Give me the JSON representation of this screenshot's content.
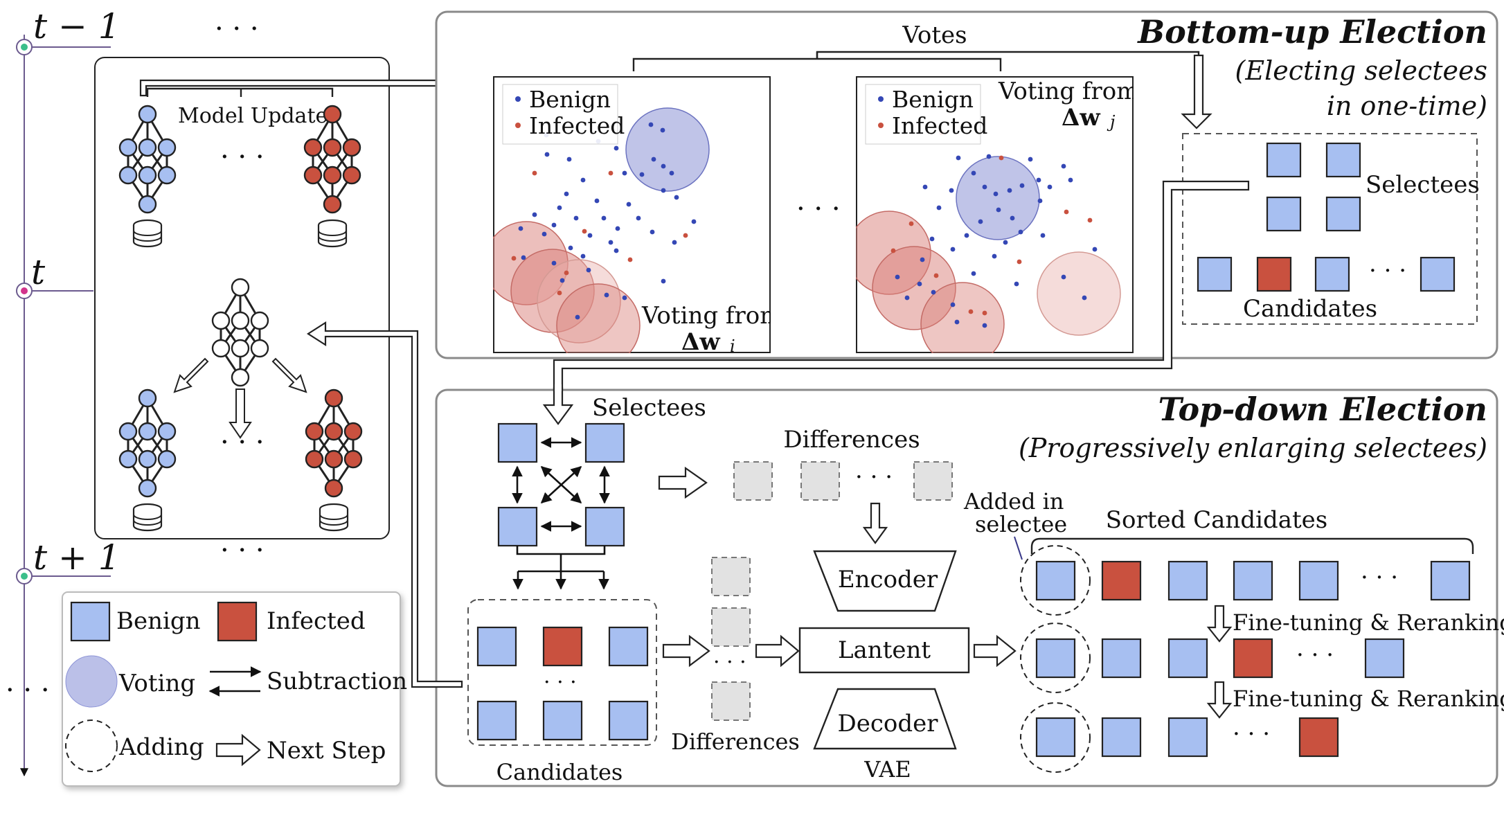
{
  "timeline": {
    "t_prev": "t − 1",
    "t_now": "t",
    "t_next": "t + 1",
    "dots_top": "· · ·",
    "dots_left": "· · ·",
    "dots_mid": "· · ·"
  },
  "clients": {
    "model_updates": "Model Updates",
    "dots_top": "· · ·",
    "dots_bottom": "· · ·"
  },
  "votes_label": "Votes",
  "bottom_up": {
    "title": "Bottom-up Election",
    "subtitle_1": "(Electing selectees",
    "subtitle_2": "in one-time)",
    "legend_benign": "Benign",
    "legend_infected": "Infected",
    "voting_from_i": "Voting from",
    "delta_i": "Δw",
    "sub_i": "i",
    "voting_from_j": "Voting from",
    "delta_j": "Δw",
    "sub_j": "j",
    "dots_between": "· · ·",
    "selectees": "Selectees",
    "candidates": "Candidates",
    "dots_candidates": "· · ·"
  },
  "top_down": {
    "title": "Top-down Election",
    "subtitle": "(Progressively enlarging selectees)",
    "selectees": "Selectees",
    "differences_top": "Differences",
    "dots_diff_top": "· · ·",
    "encoder": "Encoder",
    "latent": "Lantent",
    "decoder": "Decoder",
    "vae": "VAE",
    "differences_bottom": "Differences",
    "dots_diff_left": "· · ·",
    "candidates": "Candidates",
    "dots_candidates": "· · ·",
    "added_1": "Added in",
    "added_2": "selectee",
    "sorted_candidates": "Sorted Candidates",
    "finetune_1": "Fine-tuning & Reranking",
    "finetune_2": "Fine-tuning & Reranking",
    "dots_row": "· · ·"
  },
  "legend": {
    "benign": "Benign",
    "infected": "Infected",
    "voting": "Voting",
    "subtraction": "Subtraction",
    "adding": "Adding",
    "next_step": "Next Step"
  },
  "colors": {
    "benign": "#a7bff1",
    "infected": "#c9513f",
    "voting_blue": "#8c93d6",
    "voting_red": "#d9807a"
  }
}
